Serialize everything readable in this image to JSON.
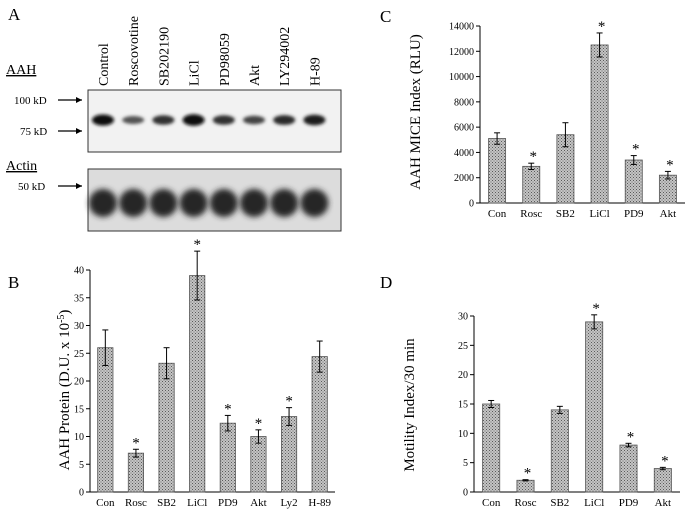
{
  "panels": {
    "A": "A",
    "B": "B",
    "C": "C",
    "D": "D"
  },
  "blot": {
    "aah_label": "AAH",
    "actin_label": "Actin",
    "lanes": [
      "Control",
      "Roscovotine",
      "SB202190",
      "LiCl",
      "PD98059",
      "Akt",
      "LY294002",
      "H-89"
    ],
    "markers": [
      "100 kD",
      "75 kD",
      "50 kD"
    ],
    "aah_band_intensity": [
      0.95,
      0.45,
      0.7,
      1.0,
      0.7,
      0.55,
      0.75,
      0.85
    ]
  },
  "chart_data": [
    {
      "panel": "B",
      "type": "bar",
      "categories": [
        "Con",
        "Rosc",
        "SB2",
        "LiCl",
        "PD9",
        "Akt",
        "Ly2",
        "H-89"
      ],
      "values": [
        26,
        7,
        23.2,
        39,
        12.4,
        10,
        13.6,
        24.4
      ],
      "errors": [
        3.2,
        0.7,
        2.8,
        4.4,
        1.4,
        1.2,
        1.6,
        2.8
      ],
      "significant": [
        false,
        true,
        false,
        true,
        true,
        true,
        true,
        false
      ],
      "star": "*",
      "ylabel_main": "AAH Protein (D.U. x 10",
      "ylabel_exp": "-5",
      "ylabel_close": ")",
      "ylim": [
        0,
        40
      ],
      "yticks": [
        0,
        5,
        10,
        15,
        20,
        25,
        30,
        35,
        40
      ],
      "grid": false
    },
    {
      "panel": "C",
      "type": "bar",
      "categories": [
        "Con",
        "Rosc",
        "SB2",
        "LiCl",
        "PD9",
        "Akt"
      ],
      "values": [
        5100,
        2900,
        5400,
        12500,
        3400,
        2200
      ],
      "errors": [
        450,
        250,
        950,
        950,
        350,
        300
      ],
      "significant": [
        false,
        true,
        false,
        true,
        true,
        true
      ],
      "star": "*",
      "ylabel": "AAH MICE Index (RLU)",
      "ylim": [
        0,
        14000
      ],
      "yticks": [
        0,
        2000,
        4000,
        6000,
        8000,
        10000,
        12000,
        14000
      ],
      "grid": false
    },
    {
      "panel": "D",
      "type": "bar",
      "categories": [
        "Con",
        "Rosc",
        "SB2",
        "LiCl",
        "PD9",
        "Akt"
      ],
      "values": [
        15,
        2,
        14,
        29,
        8,
        4
      ],
      "errors": [
        0.6,
        0.1,
        0.6,
        1.2,
        0.3,
        0.2
      ],
      "significant": [
        false,
        true,
        false,
        true,
        true,
        true
      ],
      "star": "*",
      "ylabel": "Motility Index/30 min",
      "ylim": [
        0,
        30
      ],
      "yticks": [
        0,
        5,
        10,
        15,
        20,
        25,
        30
      ],
      "grid": false
    }
  ]
}
